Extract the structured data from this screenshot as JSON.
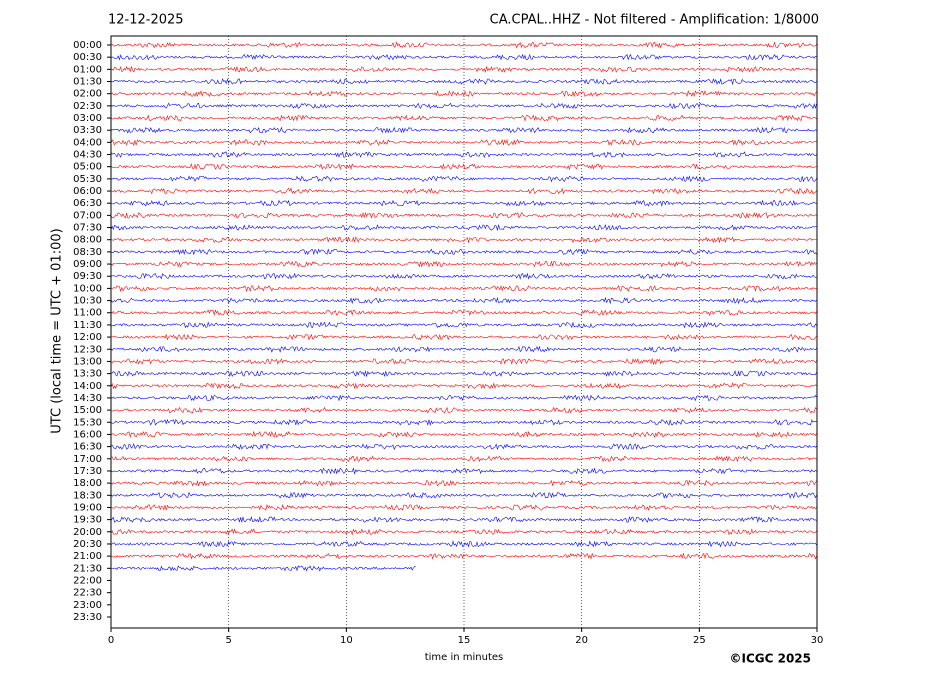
{
  "chart_data": {
    "type": "helicorder",
    "title_left": "12-12-2025",
    "title_right": "CA.CPAL..HHZ - Not filtered - Amplification: 1/8000",
    "xlabel": "time in minutes",
    "ylabel": "UTC (local time = UTC + 01:00)",
    "credit": "©ICGC 2025",
    "xlim": [
      0,
      30
    ],
    "xticks": [
      0,
      5,
      10,
      15,
      20,
      25,
      30
    ],
    "grid": true,
    "colors": [
      "#ff0000",
      "#0000ff"
    ],
    "categories": [
      "00:00",
      "00:30",
      "01:00",
      "01:30",
      "02:00",
      "02:30",
      "03:00",
      "03:30",
      "04:00",
      "04:30",
      "05:00",
      "05:30",
      "06:00",
      "06:30",
      "07:00",
      "07:30",
      "08:00",
      "08:30",
      "09:00",
      "09:30",
      "10:00",
      "10:30",
      "11:00",
      "11:30",
      "12:00",
      "12:30",
      "13:00",
      "13:30",
      "14:00",
      "14:30",
      "15:00",
      "15:30",
      "16:00",
      "16:30",
      "17:00",
      "17:30",
      "18:00",
      "18:30",
      "19:00",
      "19:30",
      "20:00",
      "20:30",
      "21:00",
      "21:30",
      "22:00",
      "22:30",
      "23:00",
      "23:30"
    ],
    "values": [
      30,
      30,
      30,
      30,
      30,
      30,
      30,
      30,
      30,
      30,
      30,
      30,
      30,
      30,
      30,
      30,
      30,
      30,
      30,
      30,
      30,
      30,
      30,
      30,
      30,
      30,
      30,
      30,
      30,
      30,
      30,
      30,
      30,
      30,
      30,
      30,
      30,
      30,
      30,
      30,
      30,
      30,
      30,
      13,
      null,
      null,
      null,
      null
    ]
  }
}
